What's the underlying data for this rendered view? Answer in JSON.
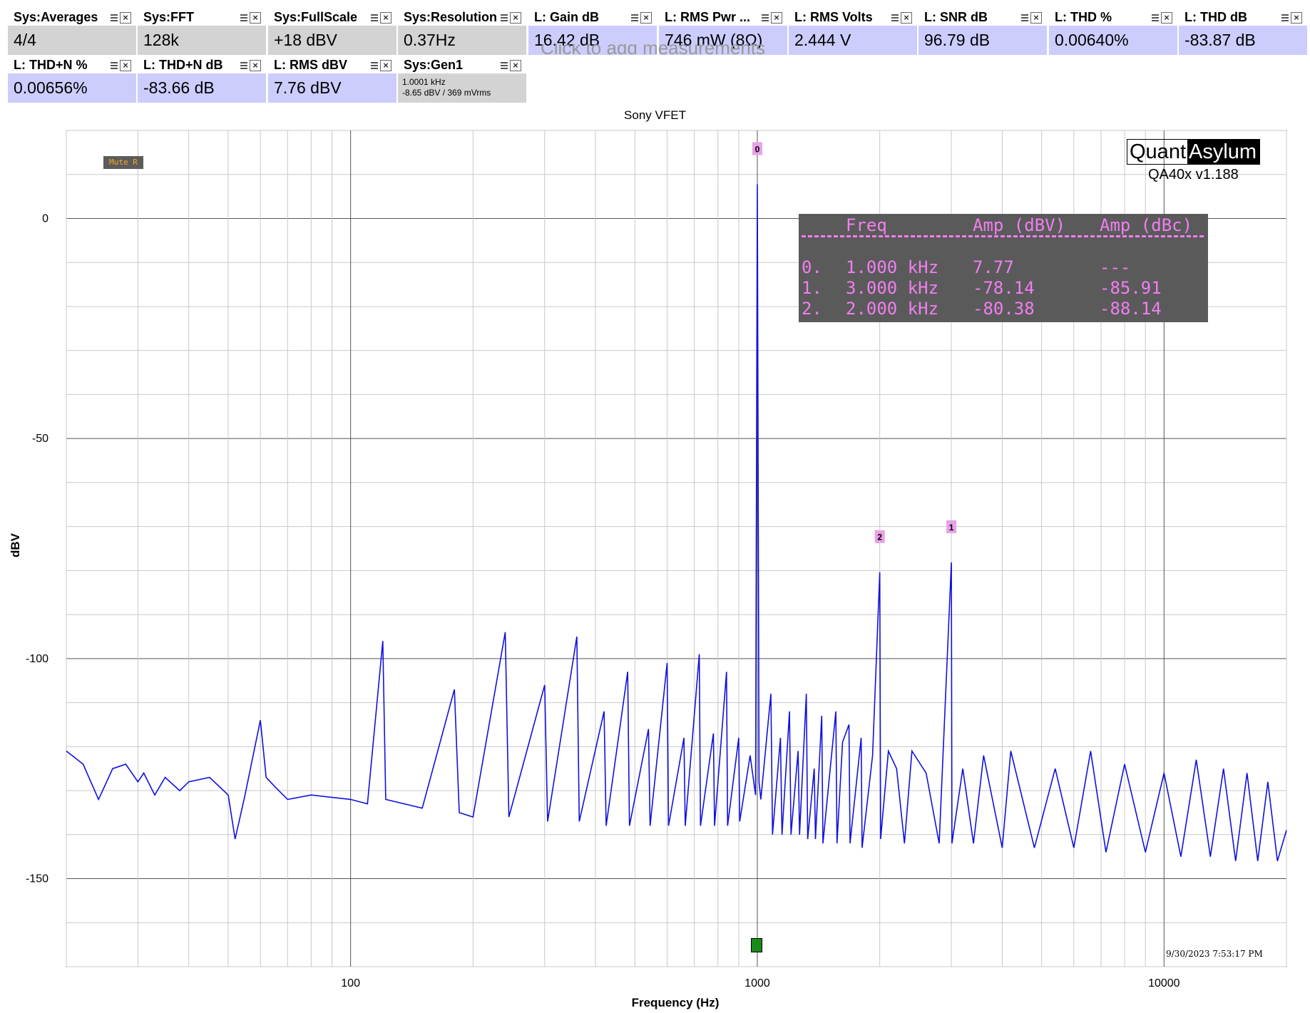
{
  "measurements": [
    {
      "name": "Sys:Averages",
      "value": "4/4",
      "style": "gray"
    },
    {
      "name": "Sys:FFT",
      "value": "128k",
      "style": "gray"
    },
    {
      "name": "Sys:FullScale",
      "value": "+18 dBV",
      "style": "gray"
    },
    {
      "name": "Sys:Resolution",
      "value": "0.37Hz",
      "style": "gray"
    },
    {
      "name": "L: Gain dB",
      "value": "16.42 dB",
      "style": "blue"
    },
    {
      "name": "L: RMS Pwr ...",
      "value": "746 mW (8Ω)",
      "style": "blue"
    },
    {
      "name": "L: RMS Volts",
      "value": "2.444 V",
      "style": "blue"
    },
    {
      "name": "L: SNR dB",
      "value": "96.79 dB",
      "style": "blue"
    },
    {
      "name": "L: THD %",
      "value": "0.00640%",
      "style": "blue"
    },
    {
      "name": "L: THD dB",
      "value": "-83.87 dB",
      "style": "blue"
    },
    {
      "name": "L: THD+N %",
      "value": "0.00656%",
      "style": "blue"
    },
    {
      "name": "L: THD+N dB",
      "value": "-83.66 dB",
      "style": "blue"
    },
    {
      "name": "L: RMS dBV",
      "value": "7.76 dBV",
      "style": "blue"
    },
    {
      "name": "Sys:Gen1",
      "line1": "1.0001 kHz",
      "line2": "-8.65 dBV  / 369 mVrms",
      "style": "gray"
    }
  ],
  "add_measurement_text": "Click to add measurements",
  "mute_badge": "Mute R",
  "logo": {
    "part1": "Quant",
    "part2": "Asylum",
    "version": "QA40x v1.188"
  },
  "timestamp": "9/30/2023 7:53:17 PM",
  "peak_table": {
    "headers": [
      "Freq",
      "Amp (dBV)",
      "Amp (dBc)"
    ],
    "rows": [
      {
        "idx": "0.",
        "freq": "1.000 kHz",
        "dbv": "7.77",
        "dbc": "---"
      },
      {
        "idx": "1.",
        "freq": "3.000 kHz",
        "dbv": "-78.14",
        "dbc": "-85.91"
      },
      {
        "idx": "2.",
        "freq": "2.000 kHz",
        "dbv": "-80.38",
        "dbc": "-88.14"
      }
    ]
  },
  "colors": {
    "trace": "#1111dd",
    "marker": "#e8a0e8",
    "table_text": "#f07ff0",
    "table_bg": "#5a5a5a"
  },
  "chart_data": {
    "type": "line",
    "title": "Sony VFET",
    "xlabel": "Frequency (Hz)",
    "ylabel": "dBV",
    "xscale": "log",
    "xlim": [
      20,
      20000
    ],
    "ylim": [
      -170,
      20
    ],
    "y_ticks": [
      0,
      -50,
      -100,
      -150
    ],
    "x_ticks": [
      100,
      1000,
      10000
    ],
    "grid": true,
    "series": [
      {
        "name": "",
        "points": [
          [
            20,
            -121
          ],
          [
            22,
            -124
          ],
          [
            24,
            -132
          ],
          [
            26,
            -125
          ],
          [
            28,
            -124
          ],
          [
            30,
            -128
          ],
          [
            31,
            -126
          ],
          [
            33,
            -131
          ],
          [
            35,
            -127
          ],
          [
            38,
            -130
          ],
          [
            40,
            -128
          ],
          [
            45,
            -127
          ],
          [
            50,
            -131
          ],
          [
            52,
            -141
          ],
          [
            55,
            -131
          ],
          [
            60,
            -114
          ],
          [
            62,
            -127
          ],
          [
            65,
            -129
          ],
          [
            70,
            -132
          ],
          [
            80,
            -131
          ],
          [
            100,
            -132
          ],
          [
            110,
            -133
          ],
          [
            120,
            -96
          ],
          [
            122,
            -132
          ],
          [
            150,
            -134
          ],
          [
            180,
            -107
          ],
          [
            185,
            -135
          ],
          [
            200,
            -136
          ],
          [
            240,
            -94
          ],
          [
            245,
            -136
          ],
          [
            300,
            -106
          ],
          [
            305,
            -137
          ],
          [
            360,
            -95
          ],
          [
            365,
            -137
          ],
          [
            420,
            -112
          ],
          [
            425,
            -138
          ],
          [
            480,
            -103
          ],
          [
            485,
            -138
          ],
          [
            540,
            -116
          ],
          [
            545,
            -138
          ],
          [
            600,
            -101
          ],
          [
            605,
            -138
          ],
          [
            660,
            -118
          ],
          [
            665,
            -138
          ],
          [
            720,
            -99
          ],
          [
            725,
            -138
          ],
          [
            780,
            -117
          ],
          [
            785,
            -138
          ],
          [
            840,
            -103
          ],
          [
            845,
            -138
          ],
          [
            900,
            -118
          ],
          [
            905,
            -137
          ],
          [
            960,
            -122
          ],
          [
            990,
            -131
          ],
          [
            1000,
            7.77
          ],
          [
            1010,
            -128
          ],
          [
            1020,
            -132
          ],
          [
            1080,
            -108
          ],
          [
            1090,
            -140
          ],
          [
            1140,
            -118
          ],
          [
            1150,
            -140
          ],
          [
            1200,
            -112
          ],
          [
            1210,
            -140
          ],
          [
            1260,
            -121
          ],
          [
            1270,
            -140
          ],
          [
            1320,
            -108
          ],
          [
            1330,
            -141
          ],
          [
            1380,
            -125
          ],
          [
            1390,
            -141
          ],
          [
            1440,
            -113
          ],
          [
            1450,
            -142
          ],
          [
            1500,
            -128
          ],
          [
            1560,
            -112
          ],
          [
            1570,
            -142
          ],
          [
            1620,
            -119
          ],
          [
            1680,
            -115
          ],
          [
            1690,
            -142
          ],
          [
            1800,
            -118
          ],
          [
            1810,
            -143
          ],
          [
            1920,
            -122
          ],
          [
            2000,
            -80.38
          ],
          [
            2010,
            -141
          ],
          [
            2100,
            -121
          ],
          [
            2200,
            -125
          ],
          [
            2300,
            -142
          ],
          [
            2400,
            -121
          ],
          [
            2600,
            -126
          ],
          [
            2800,
            -142
          ],
          [
            3000,
            -78.14
          ],
          [
            3010,
            -142
          ],
          [
            3200,
            -125
          ],
          [
            3400,
            -142
          ],
          [
            3600,
            -122
          ],
          [
            4000,
            -143
          ],
          [
            4200,
            -121
          ],
          [
            4800,
            -143
          ],
          [
            5400,
            -125
          ],
          [
            6000,
            -143
          ],
          [
            6600,
            -121
          ],
          [
            7200,
            -144
          ],
          [
            8000,
            -124
          ],
          [
            9000,
            -144
          ],
          [
            10000,
            -126
          ],
          [
            11000,
            -145
          ],
          [
            12000,
            -123
          ],
          [
            13000,
            -145
          ],
          [
            14000,
            -125
          ],
          [
            15000,
            -146
          ],
          [
            16000,
            -126
          ],
          [
            17000,
            -146
          ],
          [
            18000,
            -128
          ],
          [
            19000,
            -146
          ],
          [
            20000,
            -139
          ]
        ]
      }
    ],
    "peak_markers": [
      {
        "label": "0",
        "freq": 1000,
        "dbv": 7.77
      },
      {
        "label": "1",
        "freq": 3000,
        "dbv": -78.14
      },
      {
        "label": "2",
        "freq": 2000,
        "dbv": -80.38
      }
    ]
  }
}
